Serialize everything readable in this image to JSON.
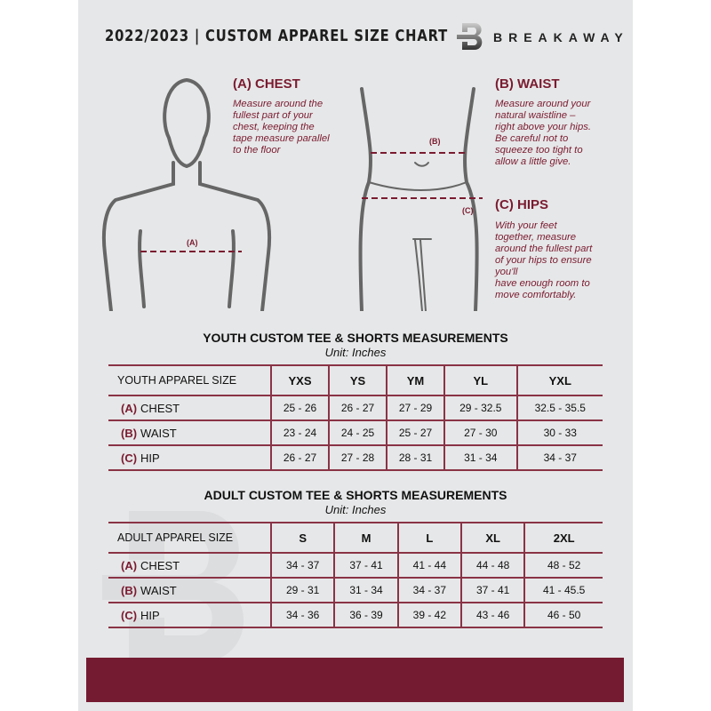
{
  "header": {
    "title": "2022/2023  |  CUSTOM APPAREL SIZE CHART",
    "brand": "BREAKAWAY",
    "logo_letter": "B"
  },
  "chest": {
    "heading": "(A) CHEST",
    "lines": [
      "Measure around the",
      "fullest part of your",
      "chest, keeping the",
      "tape measure parallel",
      "to the floor"
    ],
    "marker": "(A)"
  },
  "waist": {
    "heading": "(B) WAIST",
    "lines": [
      "Measure around your",
      "natural waistline –",
      "right above your hips.",
      "Be careful not to",
      "squeeze too tight to",
      "allow a little give."
    ],
    "marker": "(B)"
  },
  "hips": {
    "heading": "(C) HIPS",
    "lines": [
      "With your feet",
      "together, measure",
      "around the fullest part",
      "of your hips to ensure",
      "you'll",
      "have enough room to",
      "move comfortably."
    ],
    "marker": "(C)"
  },
  "colors": {
    "accent": "#741b31",
    "background": "#e6e7e8"
  },
  "tables": [
    {
      "title": "YOUTH CUSTOM TEE & SHORTS MEASUREMENTS",
      "unit": "Unit: Inches",
      "size_label": "YOUTH APPAREL SIZE",
      "sizes": [
        "YXS",
        "YS",
        "YM",
        "YL",
        "YXL"
      ],
      "rows": [
        {
          "code": "(A)",
          "name": "CHEST",
          "values": [
            "25 - 26",
            "26 - 27",
            "27 - 29",
            "29 - 32.5",
            "32.5 - 35.5"
          ]
        },
        {
          "code": "(B)",
          "name": "WAIST",
          "values": [
            "23 - 24",
            "24 - 25",
            "25 - 27",
            "27 - 30",
            "30 - 33"
          ]
        },
        {
          "code": "(C)",
          "name": "HIP",
          "values": [
            "26 - 27",
            "27 - 28",
            "28 - 31",
            "31 - 34",
            "34 - 37"
          ]
        }
      ]
    },
    {
      "title": "ADULT CUSTOM TEE & SHORTS MEASUREMENTS",
      "unit": "Unit: Inches",
      "size_label": "ADULT APPAREL SIZE",
      "sizes": [
        "S",
        "M",
        "L",
        "XL",
        "2XL"
      ],
      "rows": [
        {
          "code": "(A)",
          "name": "CHEST",
          "values": [
            "34 - 37",
            "37 - 41",
            "41 - 44",
            "44 - 48",
            "48 - 52"
          ]
        },
        {
          "code": "(B)",
          "name": "WAIST",
          "values": [
            "29 - 31",
            "31 - 34",
            "34 - 37",
            "37 - 41",
            "41 - 45.5"
          ]
        },
        {
          "code": "(C)",
          "name": "HIP",
          "values": [
            "34 - 36",
            "36 - 39",
            "39 - 42",
            "43 - 46",
            "46 - 50"
          ]
        }
      ]
    }
  ]
}
